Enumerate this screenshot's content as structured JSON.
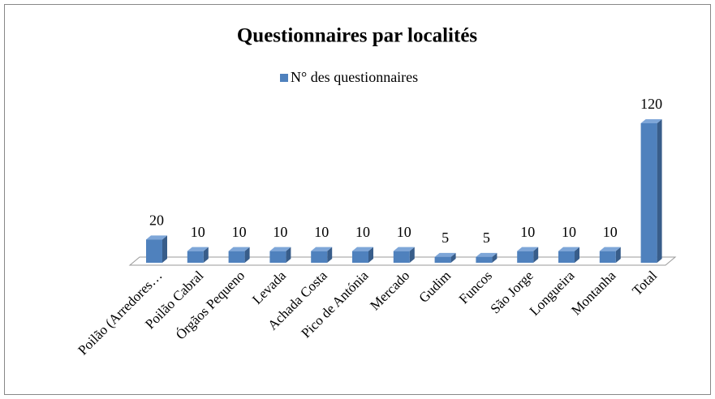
{
  "chart_data": {
    "type": "bar3d",
    "title": "Questionnaires par localités",
    "categories": [
      "Poilão (Arredores…",
      "Poilão Cabral",
      "Órgãos Pequeno",
      "Levada",
      "Achada Costa",
      "Pico de Antónia",
      "Mercado",
      "Gudim",
      "Funcos",
      "São Jorge",
      "Longueira",
      "Montanha",
      "Total"
    ],
    "series": [
      {
        "name": "N° des questionnaires",
        "color": "#4f81bd",
        "values": [
          20,
          10,
          10,
          10,
          10,
          10,
          10,
          5,
          5,
          10,
          10,
          10,
          120
        ]
      }
    ],
    "legend": "top"
  }
}
